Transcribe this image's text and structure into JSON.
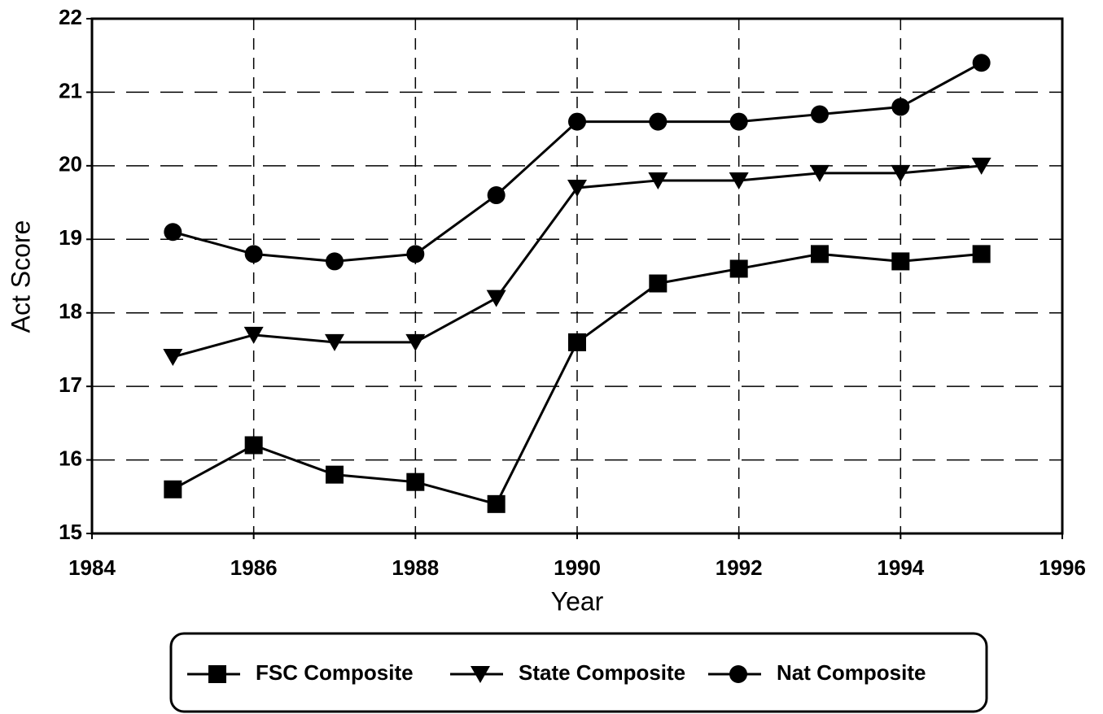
{
  "chart_data": {
    "type": "line",
    "x_label": "Year",
    "y_label": "Act Score",
    "x": [
      1985,
      1986,
      1987,
      1988,
      1989,
      1990,
      1991,
      1992,
      1993,
      1994,
      1995
    ],
    "series": [
      {
        "name": "FSC Composite",
        "color": "#000000",
        "marker": "square",
        "values": [
          15.6,
          16.2,
          15.8,
          15.7,
          15.4,
          17.6,
          18.4,
          18.6,
          18.8,
          18.7,
          18.8
        ]
      },
      {
        "name": "State Composite",
        "color": "#000000",
        "marker": "triangle-down",
        "values": [
          17.4,
          17.7,
          17.6,
          17.6,
          18.2,
          19.7,
          19.8,
          19.8,
          19.9,
          19.9,
          20.0
        ]
      },
      {
        "name": "Nat Composite",
        "color": "#000000",
        "marker": "circle",
        "values": [
          19.1,
          18.8,
          18.7,
          18.8,
          19.6,
          20.6,
          20.6,
          20.6,
          20.7,
          20.8,
          21.4
        ]
      }
    ],
    "xlim": [
      1984,
      1996
    ],
    "xticks": [
      1984,
      1986,
      1988,
      1990,
      1992,
      1994,
      1996
    ],
    "ylim": [
      15,
      22
    ],
    "yticks": [
      15,
      16,
      17,
      18,
      19,
      20,
      21,
      22
    ],
    "grid": true,
    "legend": "bottom"
  }
}
